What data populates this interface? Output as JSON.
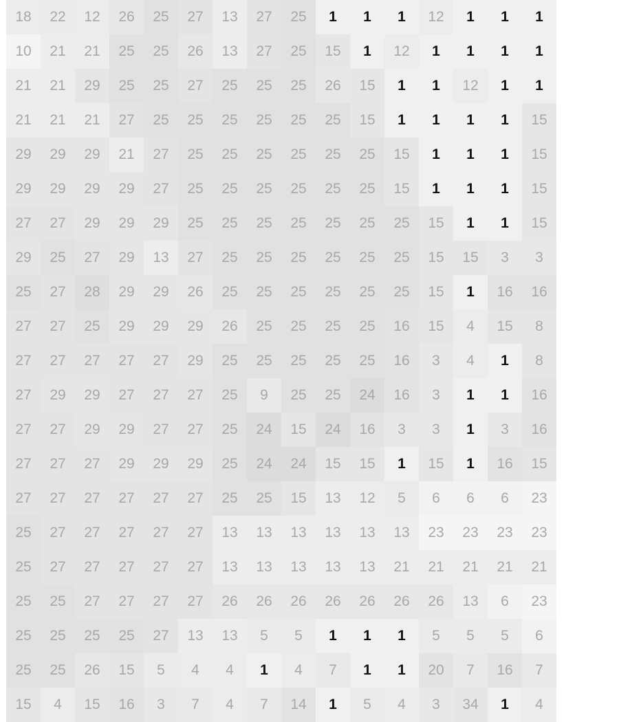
{
  "grid": {
    "rows": [
      [
        "18",
        "22",
        "12",
        "26",
        "25",
        "27",
        "13",
        "27",
        "25",
        "1",
        "1",
        "1",
        "12",
        "1",
        "1",
        "1"
      ],
      [
        "10",
        "21",
        "21",
        "25",
        "25",
        "26",
        "13",
        "27",
        "25",
        "15",
        "1",
        "12",
        "1",
        "1",
        "1",
        "1"
      ],
      [
        "21",
        "21",
        "29",
        "25",
        "25",
        "27",
        "25",
        "25",
        "25",
        "26",
        "15",
        "1",
        "1",
        "12",
        "1",
        "1"
      ],
      [
        "21",
        "21",
        "21",
        "27",
        "25",
        "25",
        "25",
        "25",
        "25",
        "25",
        "15",
        "1",
        "1",
        "1",
        "1",
        "15"
      ],
      [
        "29",
        "29",
        "29",
        "21",
        "27",
        "25",
        "25",
        "25",
        "25",
        "25",
        "25",
        "15",
        "1",
        "1",
        "1",
        "15"
      ],
      [
        "29",
        "29",
        "29",
        "29",
        "27",
        "25",
        "25",
        "25",
        "25",
        "25",
        "25",
        "15",
        "1",
        "1",
        "1",
        "15"
      ],
      [
        "27",
        "27",
        "29",
        "29",
        "29",
        "25",
        "25",
        "25",
        "25",
        "25",
        "25",
        "25",
        "15",
        "1",
        "1",
        "15"
      ],
      [
        "29",
        "25",
        "27",
        "29",
        "13",
        "27",
        "25",
        "25",
        "25",
        "25",
        "25",
        "25",
        "15",
        "15",
        "3",
        "3"
      ],
      [
        "25",
        "27",
        "28",
        "29",
        "29",
        "26",
        "25",
        "25",
        "25",
        "25",
        "25",
        "25",
        "15",
        "1",
        "16",
        "16"
      ],
      [
        "27",
        "27",
        "25",
        "29",
        "29",
        "29",
        "26",
        "25",
        "25",
        "25",
        "25",
        "16",
        "15",
        "4",
        "15",
        "8"
      ],
      [
        "27",
        "27",
        "27",
        "27",
        "27",
        "29",
        "25",
        "25",
        "25",
        "25",
        "25",
        "16",
        "3",
        "4",
        "1",
        "8"
      ],
      [
        "27",
        "29",
        "29",
        "27",
        "27",
        "27",
        "25",
        "9",
        "25",
        "25",
        "24",
        "16",
        "3",
        "1",
        "1",
        "16"
      ],
      [
        "27",
        "27",
        "29",
        "29",
        "27",
        "27",
        "25",
        "24",
        "15",
        "24",
        "16",
        "3",
        "3",
        "1",
        "3",
        "16"
      ],
      [
        "27",
        "27",
        "27",
        "29",
        "29",
        "29",
        "25",
        "24",
        "24",
        "15",
        "15",
        "1",
        "15",
        "1",
        "16",
        "15"
      ],
      [
        "27",
        "27",
        "27",
        "27",
        "27",
        "27",
        "25",
        "25",
        "15",
        "13",
        "12",
        "5",
        "6",
        "6",
        "6",
        "23"
      ],
      [
        "25",
        "27",
        "27",
        "27",
        "27",
        "27",
        "13",
        "13",
        "13",
        "13",
        "13",
        "13",
        "23",
        "23",
        "23",
        "23"
      ],
      [
        "25",
        "27",
        "27",
        "27",
        "27",
        "27",
        "13",
        "13",
        "13",
        "13",
        "13",
        "21",
        "21",
        "21",
        "21",
        "21"
      ],
      [
        "25",
        "25",
        "27",
        "27",
        "27",
        "27",
        "26",
        "26",
        "26",
        "26",
        "26",
        "26",
        "26",
        "13",
        "6",
        "23"
      ],
      [
        "25",
        "25",
        "25",
        "25",
        "27",
        "13",
        "13",
        "5",
        "5",
        "1",
        "1",
        "1",
        "5",
        "5",
        "5",
        "6"
      ],
      [
        "25",
        "25",
        "26",
        "15",
        "5",
        "4",
        "4",
        "1",
        "4",
        "7",
        "1",
        "1",
        "20",
        "7",
        "16",
        "7"
      ],
      [
        "15",
        "4",
        "15",
        "16",
        "3",
        "7",
        "4",
        "7",
        "14",
        "1",
        "5",
        "4",
        "3",
        "34",
        "1",
        "4"
      ]
    ],
    "palette": {
      "1": "#f0f0f0",
      "3": "#e8e8e8",
      "4": "#ececec",
      "5": "#ebebeb",
      "6": "#f2f2f2",
      "7": "#e9e9e9",
      "8": "#e6e6e6",
      "9": "#e9e9e9",
      "10": "#f4f4f4",
      "12": "#ececec",
      "13": "#ededed",
      "14": "#e3e3e3",
      "15": "#e6e6e6",
      "16": "#e3e3e3",
      "18": "#ececec",
      "20": "#e4e4e4",
      "21": "#ededed",
      "22": "#ebebeb",
      "23": "#f5f5f5",
      "24": "#dcdcdc",
      "25": "#e1e1e1",
      "26": "#e7e7e7",
      "27": "#e4e4e4",
      "28": "#dedede",
      "29": "#e6e6e6",
      "34": "#e6e6e6"
    },
    "emphasis_value": "1",
    "emphasis_color": "#111111",
    "text_color": "#a8a8a8"
  }
}
